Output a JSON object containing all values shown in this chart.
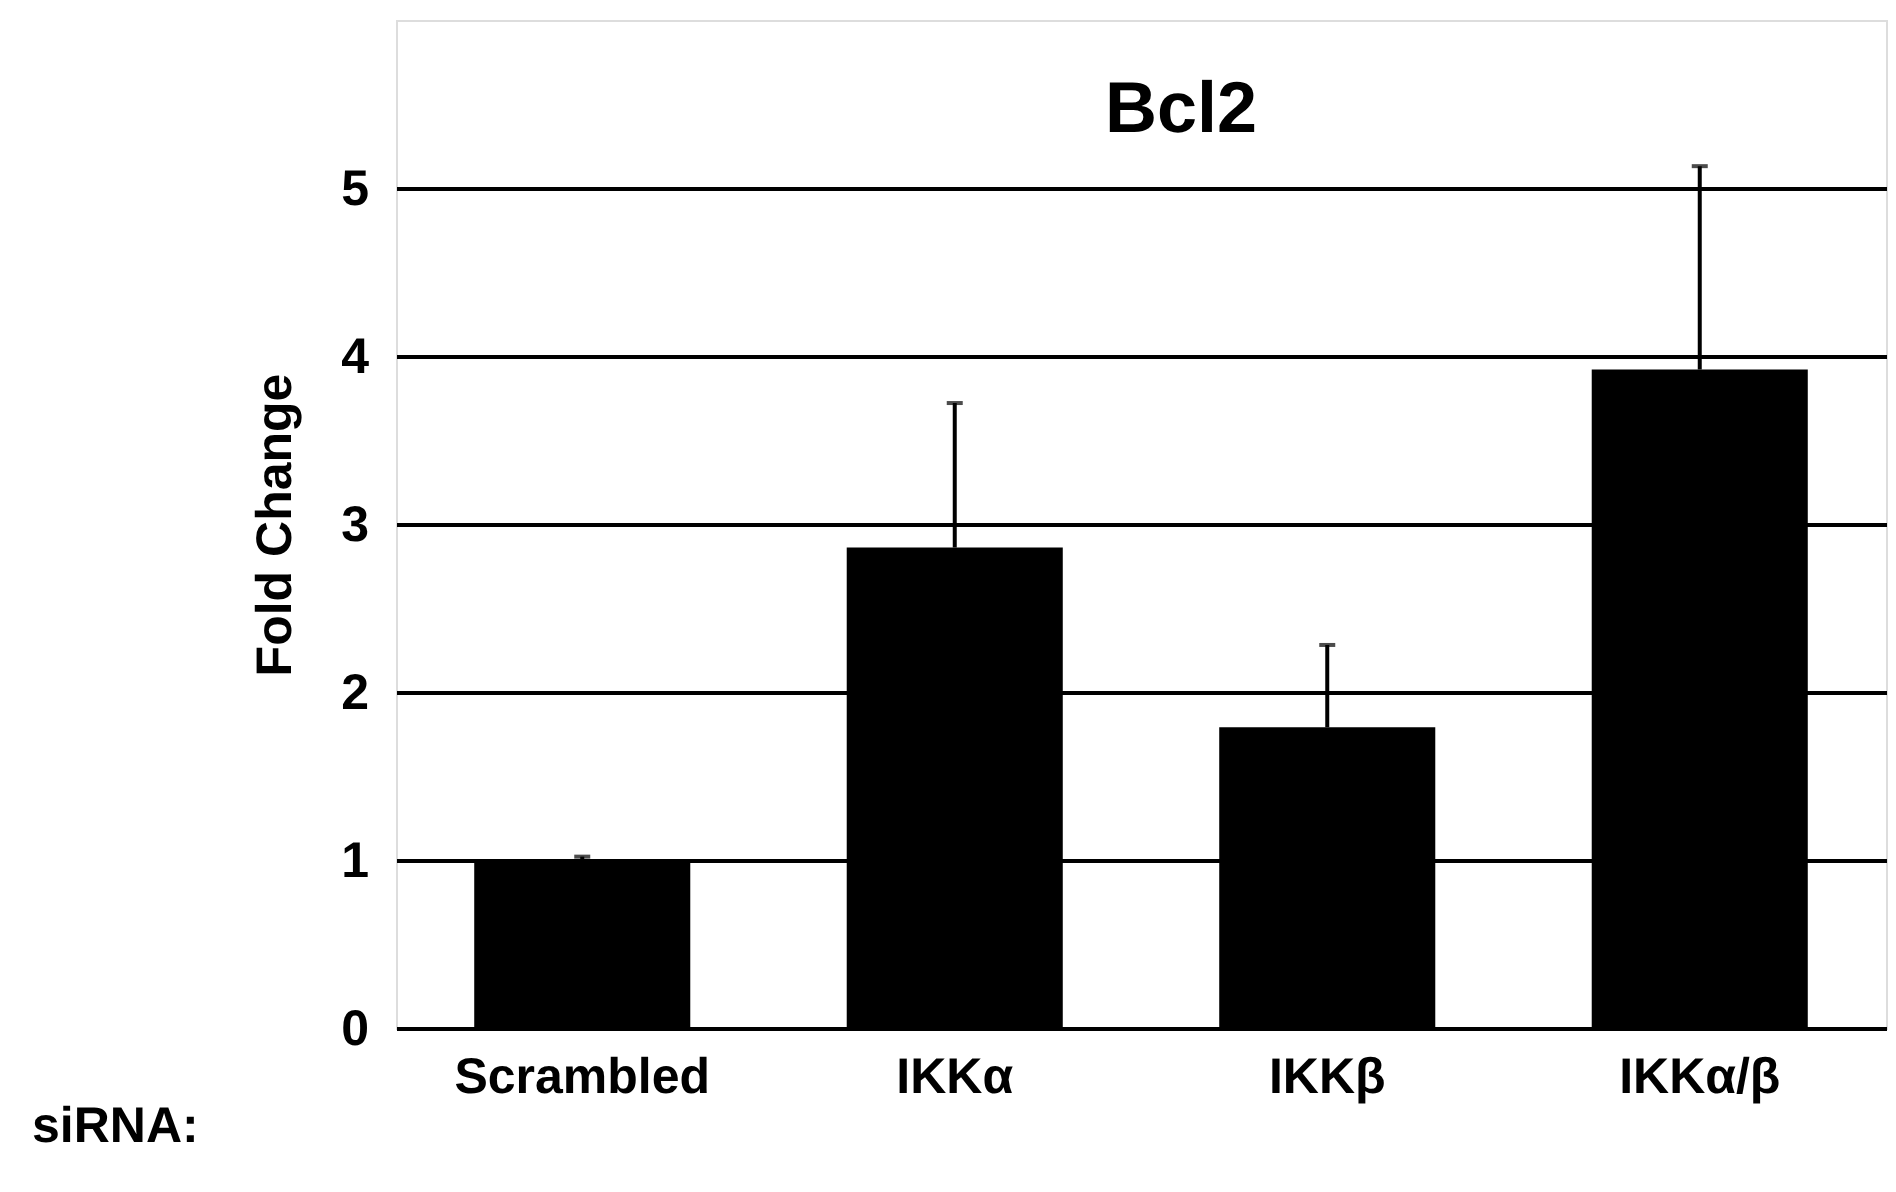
{
  "chart_data": {
    "type": "bar",
    "title": "Bcl2",
    "ylabel": "Fold Change",
    "xlabel": "siRNA:",
    "categories": [
      "Scrambled",
      "IKKα",
      "IKKβ",
      "IKKα/β"
    ],
    "values": [
      1.0,
      2.86,
      1.79,
      3.92
    ],
    "errors": [
      0.02,
      0.86,
      0.49,
      1.21
    ],
    "color": "#000000",
    "ylim": [
      0,
      6
    ],
    "yticks": [
      0,
      1,
      2,
      3,
      4,
      5
    ],
    "grid": "y"
  }
}
